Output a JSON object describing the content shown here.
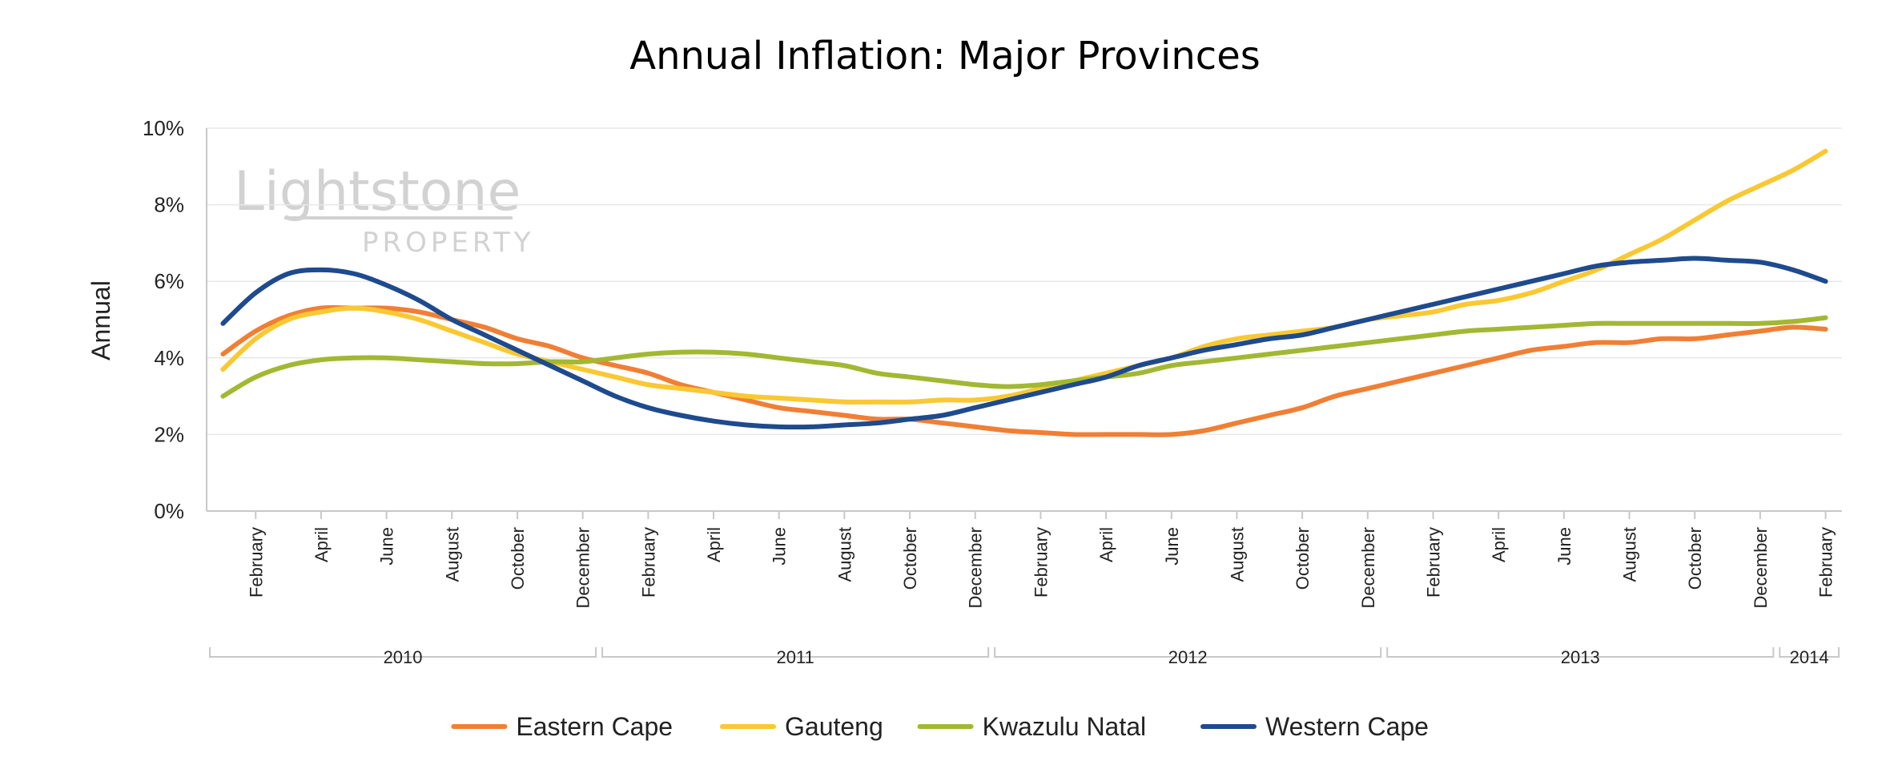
{
  "watermark": {
    "brand": "Lightstone",
    "sub": "PROPERTY"
  },
  "chart_data": {
    "type": "line",
    "title": "Annual Inflation: Major Provinces",
    "xlabel": "",
    "ylabel": "Annual",
    "ylim": [
      0,
      10
    ],
    "y_ticks": [
      "0%",
      "2%",
      "4%",
      "6%",
      "8%",
      "10%"
    ],
    "grid": true,
    "legend": "bottom",
    "x": [
      "2010-01",
      "2010-02",
      "2010-03",
      "2010-04",
      "2010-05",
      "2010-06",
      "2010-07",
      "2010-08",
      "2010-09",
      "2010-10",
      "2010-11",
      "2010-12",
      "2011-01",
      "2011-02",
      "2011-03",
      "2011-04",
      "2011-05",
      "2011-06",
      "2011-07",
      "2011-08",
      "2011-09",
      "2011-10",
      "2011-11",
      "2011-12",
      "2012-01",
      "2012-02",
      "2012-03",
      "2012-04",
      "2012-05",
      "2012-06",
      "2012-07",
      "2012-08",
      "2012-09",
      "2012-10",
      "2012-11",
      "2012-12",
      "2013-01",
      "2013-02",
      "2013-03",
      "2013-04",
      "2013-05",
      "2013-06",
      "2013-07",
      "2013-08",
      "2013-09",
      "2013-10",
      "2013-11",
      "2013-12",
      "2014-01",
      "2014-02"
    ],
    "x_tick_labels": [
      "February",
      "April",
      "June",
      "August",
      "October",
      "December",
      "February",
      "April",
      "June",
      "August",
      "October",
      "December",
      "February",
      "April",
      "June",
      "August",
      "October",
      "December",
      "February",
      "April",
      "June",
      "August",
      "October",
      "December",
      "February"
    ],
    "x_tick_months": [
      2,
      4,
      6,
      8,
      10,
      12,
      14,
      16,
      18,
      20,
      22,
      24,
      26,
      28,
      30,
      32,
      34,
      36,
      38,
      40,
      42,
      44,
      46,
      48,
      50
    ],
    "year_groups": [
      {
        "label": "2010",
        "from": 1,
        "to": 12
      },
      {
        "label": "2011",
        "from": 13,
        "to": 24
      },
      {
        "label": "2012",
        "from": 25,
        "to": 36
      },
      {
        "label": "2013",
        "from": 37,
        "to": 48
      },
      {
        "label": "2014",
        "from": 49,
        "to": 50
      }
    ],
    "series": [
      {
        "name": "Eastern Cape",
        "color": "#f07f35",
        "values": [
          4.1,
          4.7,
          5.1,
          5.3,
          5.3,
          5.3,
          5.2,
          5.0,
          4.8,
          4.5,
          4.3,
          4.0,
          3.8,
          3.6,
          3.3,
          3.1,
          2.9,
          2.7,
          2.6,
          2.5,
          2.4,
          2.4,
          2.3,
          2.2,
          2.1,
          2.05,
          2.0,
          2.0,
          2.0,
          2.0,
          2.1,
          2.3,
          2.5,
          2.7,
          3.0,
          3.2,
          3.4,
          3.6,
          3.8,
          4.0,
          4.2,
          4.3,
          4.4,
          4.4,
          4.5,
          4.5,
          4.6,
          4.7,
          4.8,
          4.75
        ]
      },
      {
        "name": "Gauteng",
        "color": "#f9c832",
        "values": [
          3.7,
          4.5,
          5.0,
          5.2,
          5.3,
          5.2,
          5.0,
          4.7,
          4.4,
          4.1,
          3.9,
          3.7,
          3.5,
          3.3,
          3.2,
          3.1,
          3.0,
          2.95,
          2.9,
          2.85,
          2.85,
          2.85,
          2.9,
          2.9,
          3.0,
          3.2,
          3.4,
          3.6,
          3.8,
          4.0,
          4.3,
          4.5,
          4.6,
          4.7,
          4.8,
          5.0,
          5.1,
          5.2,
          5.4,
          5.5,
          5.7,
          6.0,
          6.3,
          6.7,
          7.1,
          7.6,
          8.1,
          8.5,
          8.9,
          9.4
        ]
      },
      {
        "name": "Kwazulu Natal",
        "color": "#a2b832",
        "values": [
          3.0,
          3.5,
          3.8,
          3.95,
          4.0,
          4.0,
          3.95,
          3.9,
          3.85,
          3.85,
          3.9,
          3.9,
          4.0,
          4.1,
          4.15,
          4.15,
          4.1,
          4.0,
          3.9,
          3.8,
          3.6,
          3.5,
          3.4,
          3.3,
          3.25,
          3.3,
          3.4,
          3.5,
          3.6,
          3.8,
          3.9,
          4.0,
          4.1,
          4.2,
          4.3,
          4.4,
          4.5,
          4.6,
          4.7,
          4.75,
          4.8,
          4.85,
          4.9,
          4.9,
          4.9,
          4.9,
          4.9,
          4.9,
          4.95,
          5.05
        ]
      },
      {
        "name": "Western Cape",
        "color": "#1e4a8e",
        "values": [
          4.9,
          5.7,
          6.2,
          6.3,
          6.2,
          5.9,
          5.5,
          5.0,
          4.6,
          4.2,
          3.8,
          3.4,
          3.0,
          2.7,
          2.5,
          2.35,
          2.25,
          2.2,
          2.2,
          2.25,
          2.3,
          2.4,
          2.5,
          2.7,
          2.9,
          3.1,
          3.3,
          3.5,
          3.8,
          4.0,
          4.2,
          4.35,
          4.5,
          4.6,
          4.8,
          5.0,
          5.2,
          5.4,
          5.6,
          5.8,
          6.0,
          6.2,
          6.4,
          6.5,
          6.55,
          6.6,
          6.55,
          6.5,
          6.3,
          6.0
        ]
      }
    ]
  }
}
